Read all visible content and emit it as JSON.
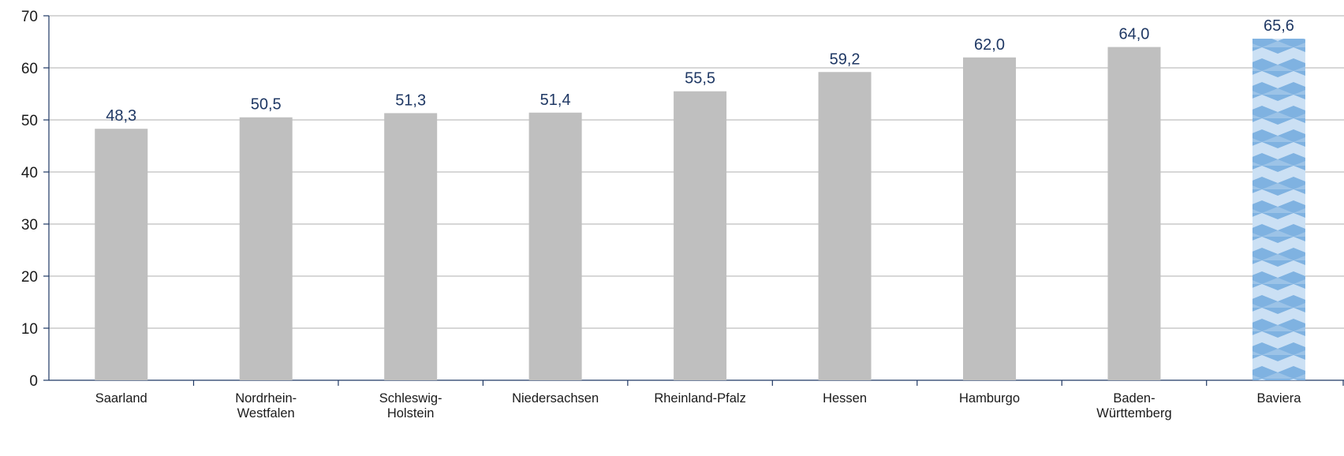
{
  "chart_data": {
    "type": "bar",
    "categories": [
      "Saarland",
      "Nordrhein-Westfalen",
      "Schleswig-Holstein",
      "Niedersachsen",
      "Rheinland-Pfalz",
      "Hessen",
      "Hamburgo",
      "Baden-Württemberg",
      "Baviera"
    ],
    "category_lines": [
      [
        "Saarland"
      ],
      [
        "Nordrhein-",
        "Westfalen"
      ],
      [
        "Schleswig-",
        "Holstein"
      ],
      [
        "Niedersachsen"
      ],
      [
        "Rheinland-Pfalz"
      ],
      [
        "Hessen"
      ],
      [
        "Hamburgo"
      ],
      [
        "Baden-",
        "Württemberg"
      ],
      [
        "Baviera"
      ]
    ],
    "values": [
      48.3,
      50.5,
      51.3,
      51.4,
      55.5,
      59.2,
      62.0,
      64.0,
      65.6
    ],
    "data_labels": [
      "48,3",
      "50,5",
      "51,3",
      "51,4",
      "55,5",
      "59,2",
      "62,0",
      "64,0",
      "65,6"
    ],
    "ylim": [
      0,
      70
    ],
    "yticks": [
      0,
      10,
      20,
      30,
      40,
      50,
      60,
      70
    ],
    "grid": true,
    "title": "",
    "xlabel": "",
    "ylabel": "",
    "highlight_category": "Baviera",
    "colors": {
      "bar": "#bfbfbf",
      "highlight_base": "#7fb2e1",
      "highlight_light": "#d4e6f7",
      "grid": "#bfbfbf",
      "axis": "#1f3864",
      "data_label": "#1f3864"
    }
  }
}
